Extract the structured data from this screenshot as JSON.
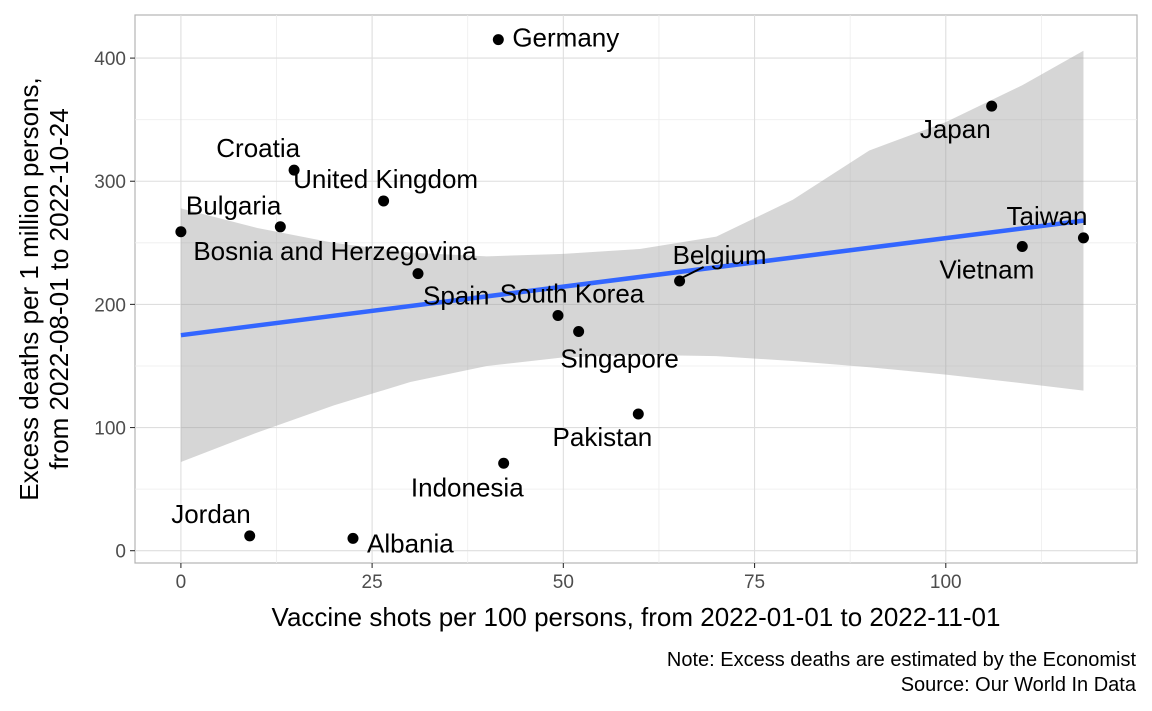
{
  "chart_data": {
    "type": "scatter",
    "xlabel": "Vaccine shots per 100 persons, from 2022-01-01 to 2022-11-01",
    "ylabel_lines": [
      "Excess deaths per 1 million persons,",
      "from 2022-08-01 to 2022-10-24"
    ],
    "xlim": [
      -6,
      125
    ],
    "ylim": [
      -10,
      435
    ],
    "x_ticks": [
      0,
      25,
      50,
      75,
      100
    ],
    "x_tick_labels": [
      "0",
      "25",
      "50",
      "75",
      "100"
    ],
    "y_ticks": [
      0,
      100,
      200,
      300,
      400
    ],
    "y_tick_labels": [
      "0",
      "100",
      "200",
      "300",
      "400"
    ],
    "grid": true,
    "points": [
      {
        "label": "Germany",
        "x": 41.5,
        "y": 415,
        "label_pos": "right"
      },
      {
        "label": "Japan",
        "x": 106,
        "y": 361,
        "label_pos": "below-left"
      },
      {
        "label": "Croatia",
        "x": 14.8,
        "y": 309,
        "label_pos": "above-left"
      },
      {
        "label": "United Kingdom",
        "x": 26.5,
        "y": 284,
        "label_pos": "above"
      },
      {
        "label": "Bulgaria",
        "x": 0,
        "y": 259,
        "label_pos": "above-right"
      },
      {
        "label": "Bosnia and Herzegovina",
        "x": 13,
        "y": 263,
        "label_pos": "below-right"
      },
      {
        "label": "Spain",
        "x": 31,
        "y": 225,
        "label_pos": "below-right"
      },
      {
        "label": "Belgium",
        "x": 65.2,
        "y": 219,
        "label_pos": "above-right"
      },
      {
        "label": "Taiwan",
        "x": 118,
        "y": 254,
        "label_pos": "above-left"
      },
      {
        "label": "Vietnam",
        "x": 110,
        "y": 247,
        "label_pos": "below-left"
      },
      {
        "label": "South Korea",
        "x": 49.3,
        "y": 191,
        "label_pos": "above"
      },
      {
        "label": "Singapore",
        "x": 52,
        "y": 178,
        "label_pos": "below"
      },
      {
        "label": "Pakistan",
        "x": 59.8,
        "y": 111,
        "label_pos": "below-left"
      },
      {
        "label": "Indonesia",
        "x": 42.2,
        "y": 71,
        "label_pos": "below-left"
      },
      {
        "label": "Jordan",
        "x": 9,
        "y": 12,
        "label_pos": "above-left"
      },
      {
        "label": "Albania",
        "x": 22.5,
        "y": 10,
        "label_pos": "right"
      }
    ],
    "trend_line": {
      "x": [
        0,
        118
      ],
      "y": [
        175,
        268
      ],
      "color": "#3366FF"
    },
    "confidence_band": {
      "x": [
        0,
        10,
        20,
        30,
        40,
        50,
        60,
        70,
        80,
        90,
        100,
        110,
        118
      ],
      "lower": [
        72,
        96,
        118,
        137,
        150,
        157,
        159,
        158,
        154,
        149,
        143,
        136,
        130
      ],
      "upper": [
        278,
        262,
        250,
        242,
        239,
        241,
        245,
        255,
        285,
        325,
        348,
        378,
        406
      ]
    },
    "notes": [
      "Note: Excess deaths are estimated by the Economist",
      "Source: Our World In Data"
    ]
  }
}
